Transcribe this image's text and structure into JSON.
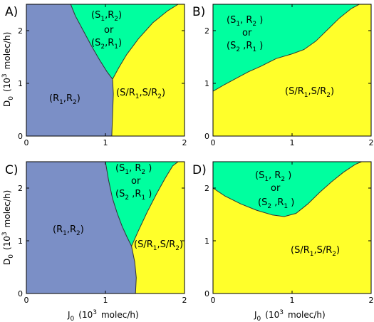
{
  "colors": {
    "region_R1R2": "#7b8fc6",
    "region_S_swap": "#00ff9f",
    "region_S_R": "#ffff2a",
    "boundary": "#333333",
    "frame": "#000000"
  },
  "axes": {
    "xlabel": "J",
    "xlabel_sub": "0",
    "xlabel_rest": "(10",
    "xlabel_sup": "3",
    "xlabel_unit": "molec/h)",
    "ylabel": "D",
    "ylabel_sub": "0",
    "ylabel_rest": "(10",
    "ylabel_sup": "3",
    "ylabel_unit": "molec/h)",
    "xticks": [
      "0",
      "1",
      "2"
    ],
    "yticks": [
      "0",
      "1",
      "2"
    ]
  },
  "region_labels": {
    "R1R2": {
      "open": "(R",
      "s1": "1",
      "mid": ",R",
      "s2": "2",
      "close": ")"
    },
    "SR": {
      "a": "(S/R",
      "s1": "1",
      "b": ",S/R",
      "s2": "2",
      "c": ")"
    },
    "swap_top": {
      "a": "(S",
      "s1": "1",
      "b": ", R",
      "s2": "2",
      "c": " )"
    },
    "swap_top_tight": {
      "a": "(S",
      "s1": "1",
      "b": ",R",
      "s2": "2",
      "c": ")"
    },
    "or": "or",
    "swap_bottom": {
      "a": "(S",
      "s1": "2",
      "b": " ,R",
      "s2": "1",
      "c": " )"
    },
    "swap_bottom_tight": {
      "a": "(S",
      "s1": "2",
      "b": ",R",
      "s2": "1",
      "c": ")"
    }
  },
  "chart_data": [
    {
      "type": "area",
      "panel": "A)",
      "xlim": [
        0,
        2
      ],
      "ylim": [
        0,
        2.5
      ],
      "boundaries": {
        "R1R2_vs_swap": {
          "x": [
            0.56,
            0.62,
            0.72,
            0.82,
            0.92,
            1.02,
            1.09
          ],
          "y": [
            2.5,
            2.28,
            2.0,
            1.72,
            1.46,
            1.22,
            1.08
          ]
        },
        "swap_vs_SR": {
          "x": [
            1.09,
            1.17,
            1.27,
            1.42,
            1.6,
            1.79,
            1.92
          ],
          "y": [
            1.08,
            1.3,
            1.55,
            1.85,
            2.15,
            2.38,
            2.5
          ]
        },
        "R1R2_vs_SR": {
          "x": [
            1.09,
            1.1,
            1.09,
            1.08
          ],
          "y": [
            1.08,
            0.8,
            0.4,
            0.0
          ]
        }
      }
    },
    {
      "type": "area",
      "panel": "B)",
      "xlim": [
        0,
        2
      ],
      "ylim": [
        0,
        2.5
      ],
      "boundaries": {
        "swap_vs_SR": {
          "x": [
            0.0,
            0.15,
            0.3,
            0.45,
            0.6,
            0.8,
            1.0,
            1.15,
            1.3,
            1.45,
            1.6,
            1.75,
            1.85
          ],
          "y": [
            0.85,
            0.98,
            1.1,
            1.22,
            1.32,
            1.47,
            1.56,
            1.64,
            1.8,
            2.02,
            2.24,
            2.42,
            2.5
          ]
        }
      }
    },
    {
      "type": "area",
      "panel": "C)",
      "xlim": [
        0,
        2
      ],
      "ylim": [
        0,
        2.5
      ],
      "boundaries": {
        "R1R2_vs_swap": {
          "x": [
            1.0,
            1.04,
            1.09,
            1.15,
            1.21,
            1.27,
            1.33
          ],
          "y": [
            2.5,
            2.15,
            1.8,
            1.52,
            1.28,
            1.08,
            0.9
          ]
        },
        "swap_vs_SR": {
          "x": [
            1.33,
            1.42,
            1.53,
            1.65,
            1.76,
            1.85,
            1.92
          ],
          "y": [
            0.9,
            1.2,
            1.55,
            1.9,
            2.2,
            2.42,
            2.5
          ]
        },
        "R1R2_vs_SR": {
          "x": [
            1.33,
            1.37,
            1.39,
            1.38
          ],
          "y": [
            0.9,
            0.6,
            0.3,
            0.0
          ]
        }
      }
    },
    {
      "type": "area",
      "panel": "D)",
      "xlim": [
        0,
        2
      ],
      "ylim": [
        0,
        2.5
      ],
      "boundaries": {
        "swap_vs_SR": {
          "x": [
            0.0,
            0.15,
            0.35,
            0.55,
            0.75,
            0.9,
            1.05,
            1.2,
            1.35,
            1.5,
            1.65,
            1.8,
            1.88
          ],
          "y": [
            2.0,
            1.85,
            1.7,
            1.58,
            1.49,
            1.46,
            1.52,
            1.7,
            1.92,
            2.12,
            2.3,
            2.45,
            2.5
          ]
        }
      }
    }
  ]
}
